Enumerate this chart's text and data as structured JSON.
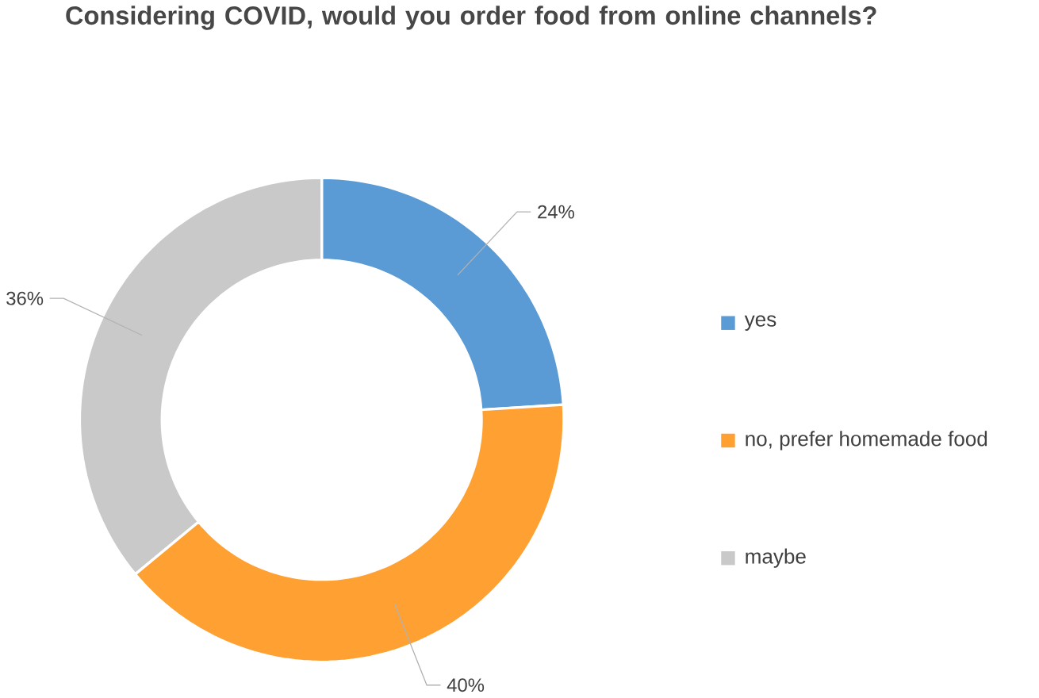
{
  "chart_data": {
    "type": "donut",
    "title": "Considering COVID, would you order food from online channels?",
    "categories": [
      "yes",
      "no, prefer homemade food",
      "maybe"
    ],
    "values": [
      24,
      40,
      36
    ],
    "colors": [
      "#5b9bd5",
      "#ffa033",
      "#c9c9c9"
    ],
    "value_labels": [
      "24%",
      "40%",
      "36%"
    ],
    "legend": "right"
  }
}
